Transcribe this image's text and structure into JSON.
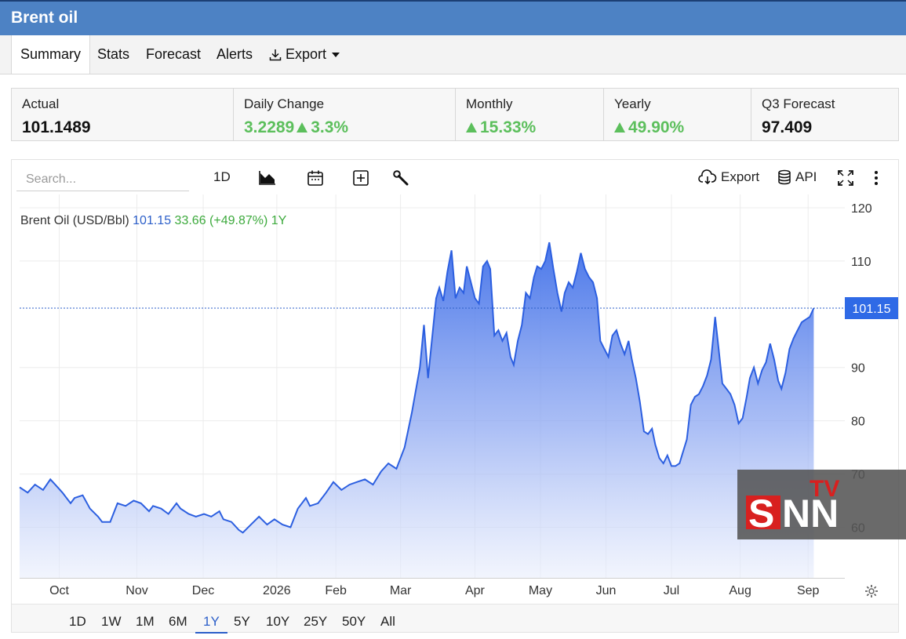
{
  "header": {
    "title": "Brent oil"
  },
  "nav": {
    "tabs": [
      "Summary",
      "Stats",
      "Forecast",
      "Alerts"
    ],
    "export_label": "Export"
  },
  "stats": {
    "actual": {
      "label": "Actual",
      "value": "101.1489"
    },
    "daily": {
      "label": "Daily Change",
      "value": "3.2289",
      "pct": "3.3%"
    },
    "monthly": {
      "label": "Monthly",
      "value": "15.33%"
    },
    "yearly": {
      "label": "Yearly",
      "value": "49.90%"
    },
    "forecast": {
      "label": "Q3 Forecast",
      "value": "97.409"
    }
  },
  "toolbar": {
    "search_placeholder": "Search...",
    "interval": "1D",
    "export": "Export",
    "api": "API"
  },
  "legend": {
    "name": "Brent Oil (USD/Bbl)",
    "price": "101.15",
    "change": "33.66 (+49.87%)",
    "period": "1Y"
  },
  "ranges": [
    "1D",
    "1W",
    "1M",
    "6M",
    "1Y",
    "5Y",
    "10Y",
    "25Y",
    "50Y",
    "All"
  ],
  "active_range": "1Y",
  "logo": {
    "text": "SNN",
    "sup": "TV"
  },
  "colors": {
    "accent": "#2c5fc9",
    "up": "#5cbf5c",
    "header": "#4d82c4"
  },
  "chart_data": {
    "type": "area",
    "series_label": "Brent Oil (USD/Bbl)",
    "last_value": 101.15,
    "last_value_label": "101.15",
    "y_ticks": [
      120,
      110,
      90,
      80,
      70,
      60
    ],
    "ylim": [
      50.5,
      122.5
    ],
    "x_ticks": [
      {
        "label": "Oct",
        "t": 0.049
      },
      {
        "label": "Nov",
        "t": 0.145
      },
      {
        "label": "Dec",
        "t": 0.227
      },
      {
        "label": "2026",
        "t": 0.318
      },
      {
        "label": "Feb",
        "t": 0.391
      },
      {
        "label": "Mar",
        "t": 0.471
      },
      {
        "label": "Apr",
        "t": 0.563
      },
      {
        "label": "May",
        "t": 0.644
      },
      {
        "label": "Jun",
        "t": 0.725
      },
      {
        "label": "Jul",
        "t": 0.806
      },
      {
        "label": "Aug",
        "t": 0.891
      },
      {
        "label": "Sep",
        "t": 0.975
      }
    ],
    "grid": true,
    "points": [
      [
        0.0,
        67.5
      ],
      [
        0.01,
        66.5
      ],
      [
        0.019,
        68.0
      ],
      [
        0.029,
        67.0
      ],
      [
        0.038,
        69.0
      ],
      [
        0.044,
        68.0
      ],
      [
        0.053,
        66.5
      ],
      [
        0.063,
        64.5
      ],
      [
        0.068,
        65.5
      ],
      [
        0.078,
        66.0
      ],
      [
        0.087,
        63.5
      ],
      [
        0.097,
        62.0
      ],
      [
        0.102,
        61.0
      ],
      [
        0.112,
        61.0
      ],
      [
        0.121,
        64.5
      ],
      [
        0.131,
        64.0
      ],
      [
        0.141,
        65.0
      ],
      [
        0.15,
        64.5
      ],
      [
        0.16,
        63.0
      ],
      [
        0.165,
        64.0
      ],
      [
        0.175,
        63.5
      ],
      [
        0.184,
        62.5
      ],
      [
        0.194,
        64.5
      ],
      [
        0.199,
        63.5
      ],
      [
        0.209,
        62.5
      ],
      [
        0.218,
        62.0
      ],
      [
        0.228,
        62.5
      ],
      [
        0.237,
        62.0
      ],
      [
        0.247,
        63.0
      ],
      [
        0.252,
        61.5
      ],
      [
        0.262,
        61.0
      ],
      [
        0.271,
        59.5
      ],
      [
        0.276,
        59.0
      ],
      [
        0.286,
        60.5
      ],
      [
        0.296,
        62.0
      ],
      [
        0.306,
        60.5
      ],
      [
        0.315,
        61.5
      ],
      [
        0.325,
        60.5
      ],
      [
        0.335,
        60.0
      ],
      [
        0.344,
        63.5
      ],
      [
        0.354,
        65.5
      ],
      [
        0.359,
        64.0
      ],
      [
        0.369,
        64.5
      ],
      [
        0.379,
        66.5
      ],
      [
        0.388,
        68.5
      ],
      [
        0.398,
        67.0
      ],
      [
        0.408,
        68.0
      ],
      [
        0.417,
        68.5
      ],
      [
        0.427,
        69.0
      ],
      [
        0.437,
        68.0
      ],
      [
        0.447,
        70.5
      ],
      [
        0.456,
        72.0
      ],
      [
        0.466,
        71.0
      ],
      [
        0.476,
        75.0
      ],
      [
        0.485,
        81.5
      ],
      [
        0.495,
        90.0
      ],
      [
        0.5,
        98.0
      ],
      [
        0.505,
        88.0
      ],
      [
        0.515,
        103.0
      ],
      [
        0.519,
        105.0
      ],
      [
        0.524,
        102.5
      ],
      [
        0.529,
        108.0
      ],
      [
        0.534,
        112.0
      ],
      [
        0.539,
        103.0
      ],
      [
        0.544,
        105.0
      ],
      [
        0.549,
        104.0
      ],
      [
        0.553,
        109.0
      ],
      [
        0.563,
        103.0
      ],
      [
        0.568,
        102.0
      ],
      [
        0.573,
        109.0
      ],
      [
        0.578,
        110.0
      ],
      [
        0.582,
        108.5
      ],
      [
        0.587,
        96.0
      ],
      [
        0.592,
        97.0
      ],
      [
        0.597,
        95.0
      ],
      [
        0.602,
        96.5
      ],
      [
        0.607,
        92.0
      ],
      [
        0.611,
        90.5
      ],
      [
        0.616,
        95.0
      ],
      [
        0.621,
        98.0
      ],
      [
        0.626,
        104.0
      ],
      [
        0.631,
        103.0
      ],
      [
        0.636,
        107.0
      ],
      [
        0.64,
        109.0
      ],
      [
        0.645,
        108.5
      ],
      [
        0.65,
        110.0
      ],
      [
        0.655,
        113.5
      ],
      [
        0.66,
        108.5
      ],
      [
        0.665,
        104.0
      ],
      [
        0.67,
        100.5
      ],
      [
        0.674,
        104.0
      ],
      [
        0.679,
        106.0
      ],
      [
        0.684,
        105.0
      ],
      [
        0.689,
        108.0
      ],
      [
        0.694,
        111.5
      ],
      [
        0.699,
        108.5
      ],
      [
        0.704,
        107.0
      ],
      [
        0.709,
        106.0
      ],
      [
        0.714,
        103.0
      ],
      [
        0.718,
        95.0
      ],
      [
        0.723,
        93.5
      ],
      [
        0.728,
        92.0
      ],
      [
        0.733,
        96.0
      ],
      [
        0.738,
        97.0
      ],
      [
        0.743,
        94.5
      ],
      [
        0.748,
        92.5
      ],
      [
        0.753,
        95.0
      ],
      [
        0.757,
        91.5
      ],
      [
        0.762,
        88.0
      ],
      [
        0.767,
        83.5
      ],
      [
        0.772,
        78.0
      ],
      [
        0.777,
        77.5
      ],
      [
        0.782,
        78.5
      ],
      [
        0.786,
        75.5
      ],
      [
        0.791,
        73.0
      ],
      [
        0.796,
        72.0
      ],
      [
        0.801,
        73.5
      ],
      [
        0.806,
        71.5
      ],
      [
        0.811,
        71.5
      ],
      [
        0.816,
        72.0
      ],
      [
        0.82,
        74.0
      ],
      [
        0.825,
        76.5
      ],
      [
        0.83,
        83.0
      ],
      [
        0.835,
        84.5
      ],
      [
        0.84,
        85.0
      ],
      [
        0.845,
        86.5
      ],
      [
        0.85,
        88.5
      ],
      [
        0.855,
        91.5
      ],
      [
        0.86,
        99.5
      ],
      [
        0.864,
        94.0
      ],
      [
        0.869,
        87.0
      ],
      [
        0.874,
        86.0
      ],
      [
        0.879,
        85.0
      ],
      [
        0.884,
        83.0
      ],
      [
        0.889,
        79.5
      ],
      [
        0.894,
        80.5
      ],
      [
        0.899,
        84.5
      ],
      [
        0.903,
        88.0
      ],
      [
        0.908,
        90.0
      ],
      [
        0.913,
        87.0
      ],
      [
        0.918,
        89.5
      ],
      [
        0.923,
        91.0
      ],
      [
        0.928,
        94.5
      ],
      [
        0.933,
        91.5
      ],
      [
        0.938,
        87.5
      ],
      [
        0.942,
        86.0
      ],
      [
        0.947,
        89.0
      ],
      [
        0.952,
        93.5
      ],
      [
        0.957,
        95.5
      ],
      [
        0.962,
        97.0
      ],
      [
        0.967,
        98.5
      ],
      [
        0.972,
        99.0
      ],
      [
        0.977,
        99.5
      ],
      [
        0.982,
        101.15
      ]
    ]
  }
}
